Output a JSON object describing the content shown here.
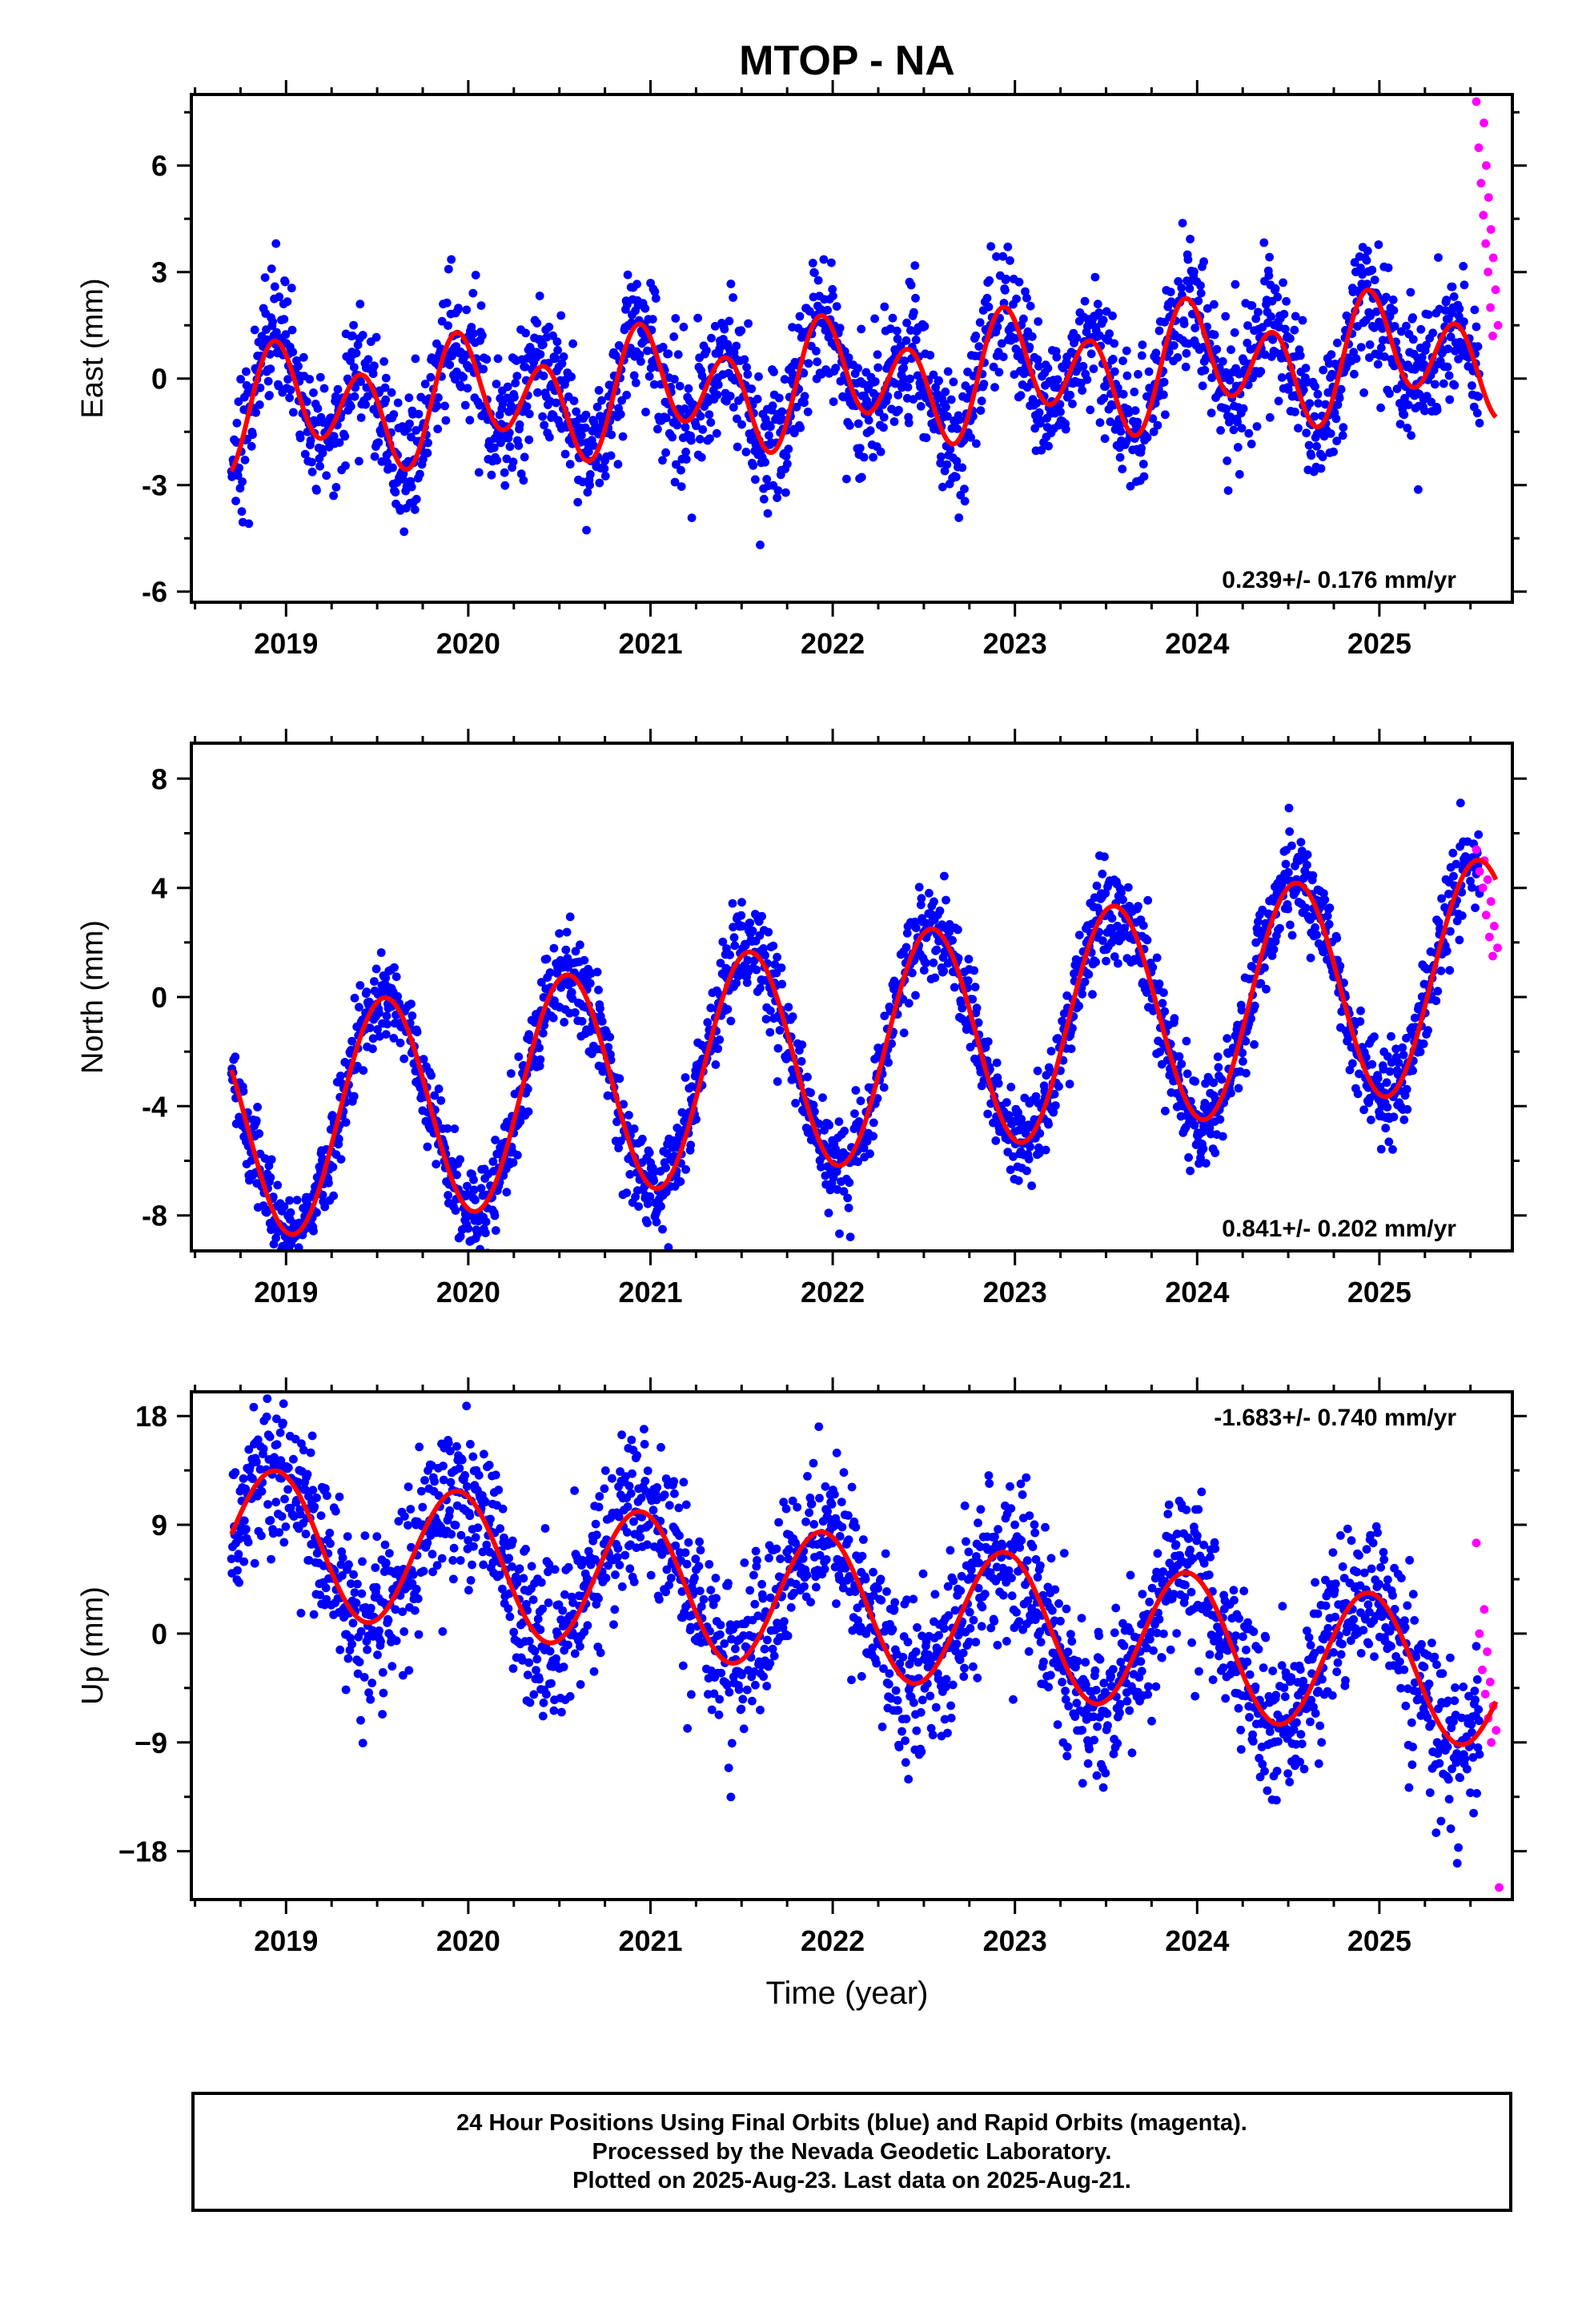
{
  "chart_data": {
    "type": "scatter",
    "title": "MTOP - NA",
    "xlabel": "Time (year)",
    "x_ticks": [
      "2019",
      "2020",
      "2021",
      "2022",
      "2023",
      "2024",
      "2025"
    ],
    "xlim": [
      2018.48,
      2025.73
    ],
    "colors": {
      "final_orbits": "#0000ff",
      "rapid_orbits": "#ff00ff",
      "model_fit": "#ff0000"
    },
    "panels": [
      {
        "ylabel": "East (mm)",
        "ylim": [
          -6.3,
          8.0
        ],
        "y_ticks": [
          -6,
          -3,
          0,
          3,
          6
        ],
        "y_tick_labels": [
          "-6",
          "-3",
          "0",
          "3",
          "6"
        ],
        "rate_label": "0.239+/- 0.176 mm/yr",
        "rate_position": "bottom-right",
        "model": {
          "trend": 0.239,
          "offset": -0.1,
          "annual_sin": 0.2,
          "annual_cos": 0.7,
          "semiannual_sin": -1.1,
          "semiannual_cos": 0.8
        },
        "noise_sd": 0.95,
        "final_orbits_span": [
          2018.7,
          2025.55
        ],
        "rapid_orbits_span": [
          2025.55,
          2025.64
        ],
        "rapid_orbits_values": [
          7.8,
          7.2,
          6.5,
          6.0,
          5.5,
          5.1,
          4.6,
          4.2,
          3.8,
          3.4,
          3.0,
          2.5,
          2.0,
          1.5,
          1.2
        ]
      },
      {
        "ylabel": "North (mm)",
        "ylim": [
          -9.3,
          9.3
        ],
        "y_ticks": [
          -8,
          -4,
          0,
          4,
          8
        ],
        "y_tick_labels": [
          "-8",
          "-4",
          "0",
          "4",
          "8"
        ],
        "rate_label": "0.841+/- 0.202 mm/yr",
        "rate_position": "bottom-right",
        "model": {
          "trend": 0.841,
          "offset": -2.0,
          "annual_sin": -1.0,
          "annual_cos": -4.0,
          "semiannual_sin": 0.0,
          "semiannual_cos": 0.0
        },
        "noise_sd": 0.85,
        "final_orbits_span": [
          2018.7,
          2025.55
        ],
        "rapid_orbits_span": [
          2025.55,
          2025.64
        ],
        "rapid_orbits_values": [
          5.4,
          5.0,
          4.6,
          4.3,
          4.0,
          3.5,
          3.0,
          2.6,
          2.2,
          1.8,
          1.5
        ]
      },
      {
        "ylabel": "Up (mm)",
        "ylim": [
          -22.0,
          20.0
        ],
        "y_ticks": [
          -18,
          -9,
          0,
          9,
          18
        ],
        "y_tick_labels": [
          "−18",
          "−9",
          "0",
          "9",
          "18"
        ],
        "rate_label": "-1.683+/- 0.740 mm/yr",
        "rate_position": "top-right",
        "model": {
          "trend": -1.683,
          "offset": 2.3,
          "annual_sin": -2.0,
          "annual_cos": 5.5,
          "semiannual_sin": 0.0,
          "semiannual_cos": 0.0
        },
        "noise_sd": 3.3,
        "final_orbits_span": [
          2018.7,
          2025.55
        ],
        "rapid_orbits_span": [
          2025.55,
          2025.64
        ],
        "rapid_orbits_values": [
          7.5,
          2.0,
          0.0,
          -1.5,
          -3.0,
          -4.0,
          -5.0,
          -6.0,
          -7.0,
          -8.0,
          -9.0,
          -21.0
        ]
      }
    ],
    "caption_lines": [
      "24 Hour Positions Using Final Orbits (blue) and Rapid Orbits (magenta).",
      "Processed by the Nevada Geodetic Laboratory.",
      "Plotted on 2025-Aug-23. Last data on 2025-Aug-21."
    ]
  }
}
